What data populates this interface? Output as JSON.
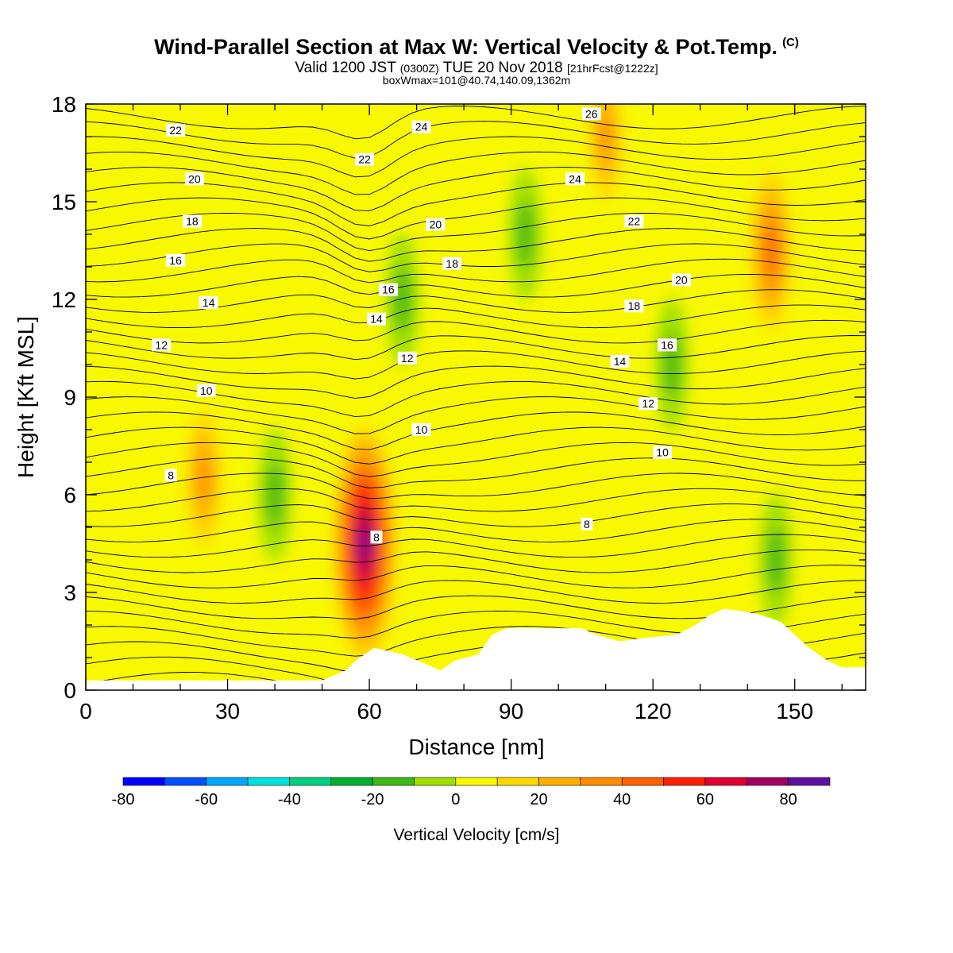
{
  "header": {
    "title": "Wind-Parallel Section at Max W: Vertical Velocity & Pot.Temp.",
    "copyright": "(C)",
    "valid_prefix": "Valid 1200 JST",
    "valid_utc": "(0300Z)",
    "valid_date": "TUE 20 Nov 2018",
    "forecast": "[21hrFcst@1222z]",
    "box_info": "boxWmax=101@40.74,140.09,1362m"
  },
  "chart_data": {
    "type": "heatmap",
    "title": "Wind-Parallel Section at Max W: Vertical Velocity & Pot.Temp.",
    "xlabel": "Distance [nm]",
    "ylabel": "Height [Kft MSL]",
    "xlim": [
      0,
      165
    ],
    "ylim": [
      0,
      18
    ],
    "xticks": [
      0,
      30,
      60,
      90,
      120,
      150
    ],
    "yticks": [
      0,
      3,
      6,
      9,
      12,
      15,
      18
    ],
    "colorbar": {
      "label": "Vertical Velocity [cm/s]",
      "levels": [
        -80,
        -70,
        -60,
        -50,
        -40,
        -30,
        -20,
        -10,
        0,
        10,
        20,
        30,
        40,
        50,
        60,
        70,
        80,
        90
      ],
      "ticks": [
        -80,
        -60,
        -40,
        -20,
        0,
        20,
        40,
        60,
        80
      ],
      "colors": [
        "#0000ff",
        "#0050ff",
        "#00a8ff",
        "#00e0e0",
        "#00d080",
        "#00b030",
        "#40b818",
        "#a0e000",
        "#f8f800",
        "#ffd800",
        "#ffb000",
        "#ff8c00",
        "#ff6000",
        "#ff2000",
        "#e00030",
        "#a00060",
        "#6010a0"
      ]
    },
    "w_features": [
      {
        "x": 25,
        "y": 6.5,
        "w_max": 45
      },
      {
        "x": 40,
        "y": 6.0,
        "w_min": -20
      },
      {
        "x": 59,
        "y": 4.5,
        "w_max": 90
      },
      {
        "x": 67,
        "y": 12.0,
        "w_min": -20
      },
      {
        "x": 93,
        "y": 14.0,
        "w_min": -20
      },
      {
        "x": 110,
        "y": 17.0,
        "w_max": 40
      },
      {
        "x": 124,
        "y": 10.0,
        "w_min": -20
      },
      {
        "x": 145,
        "y": 13.5,
        "w_max": 55
      },
      {
        "x": 146,
        "y": 4.0,
        "w_min": -20
      }
    ],
    "theta_contour_labels": [
      {
        "text": "22",
        "x": 19,
        "y": 17.2
      },
      {
        "text": "20",
        "x": 23,
        "y": 15.7
      },
      {
        "text": "18",
        "x": 22.5,
        "y": 14.4
      },
      {
        "text": "16",
        "x": 19,
        "y": 13.2
      },
      {
        "text": "14",
        "x": 26,
        "y": 11.9
      },
      {
        "text": "12",
        "x": 16,
        "y": 10.6
      },
      {
        "text": "10",
        "x": 25.5,
        "y": 9.2
      },
      {
        "text": "8",
        "x": 18,
        "y": 6.6
      },
      {
        "text": "24",
        "x": 71,
        "y": 17.3
      },
      {
        "text": "22",
        "x": 59,
        "y": 16.3
      },
      {
        "text": "20",
        "x": 74,
        "y": 14.3
      },
      {
        "text": "18",
        "x": 77.5,
        "y": 13.1
      },
      {
        "text": "16",
        "x": 64,
        "y": 12.3
      },
      {
        "text": "14",
        "x": 61.5,
        "y": 11.4
      },
      {
        "text": "12",
        "x": 68,
        "y": 10.2
      },
      {
        "text": "10",
        "x": 71,
        "y": 8.0
      },
      {
        "text": "8",
        "x": 61.5,
        "y": 4.7
      },
      {
        "text": "26",
        "x": 107,
        "y": 17.7
      },
      {
        "text": "24",
        "x": 103.5,
        "y": 15.7
      },
      {
        "text": "22",
        "x": 116,
        "y": 14.4
      },
      {
        "text": "20",
        "x": 126,
        "y": 12.6
      },
      {
        "text": "18",
        "x": 116,
        "y": 11.8
      },
      {
        "text": "16",
        "x": 123,
        "y": 10.6
      },
      {
        "text": "14",
        "x": 113,
        "y": 10.1
      },
      {
        "text": "12",
        "x": 119,
        "y": 8.8
      },
      {
        "text": "10",
        "x": 122,
        "y": 7.3
      },
      {
        "text": "8",
        "x": 106,
        "y": 5.1
      }
    ],
    "terrain_profile": [
      [
        0,
        0.3
      ],
      [
        50,
        0.3
      ],
      [
        55,
        0.6
      ],
      [
        57,
        0.9
      ],
      [
        61,
        1.3
      ],
      [
        67,
        1.1
      ],
      [
        72,
        0.8
      ],
      [
        75,
        0.6
      ],
      [
        78,
        0.9
      ],
      [
        83,
        1.1
      ],
      [
        86,
        1.7
      ],
      [
        89,
        1.9
      ],
      [
        105,
        1.9
      ],
      [
        108,
        1.7
      ],
      [
        113,
        1.5
      ],
      [
        118,
        1.6
      ],
      [
        125,
        1.7
      ],
      [
        129,
        2.0
      ],
      [
        132,
        2.3
      ],
      [
        135,
        2.5
      ],
      [
        140,
        2.4
      ],
      [
        143,
        2.3
      ],
      [
        147,
        2.1
      ],
      [
        150,
        1.7
      ],
      [
        153,
        1.3
      ],
      [
        157,
        0.9
      ],
      [
        160,
        0.7
      ],
      [
        165,
        0.7
      ]
    ]
  }
}
